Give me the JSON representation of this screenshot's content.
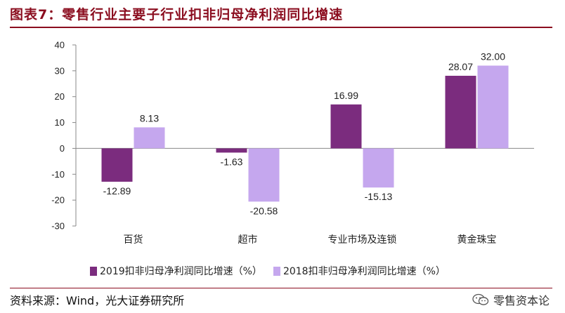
{
  "title": "图表7：零售行业主要子行业扣非归母净利润同比增速",
  "source": "资料来源：Wind，光大证券研究所",
  "watermark": "零售资本论",
  "colors": {
    "series1": "#7B2C7E",
    "series2": "#C5A7EE",
    "title": "#8B0D1F"
  },
  "chart_data": {
    "type": "bar",
    "categories": [
      "百货",
      "超市",
      "专业市场及连锁",
      "黄金珠宝"
    ],
    "series": [
      {
        "name": "2019扣非归母净利润同比增速（%）",
        "values": [
          -12.89,
          -1.63,
          16.99,
          28.07
        ],
        "labels": [
          "-12.89",
          "-1.63",
          "16.99",
          "28.07"
        ]
      },
      {
        "name": "2018扣非归母净利润同比增速（%）",
        "values": [
          8.13,
          -20.58,
          -15.13,
          32.0
        ],
        "labels": [
          "8.13",
          "-20.58",
          "-15.13",
          "32.00"
        ]
      }
    ],
    "yticks": [
      "40",
      "30",
      "20",
      "10",
      "0",
      "-10",
      "-20",
      "-30"
    ],
    "ylim": [
      -30,
      40
    ],
    "legend_position": "bottom"
  }
}
